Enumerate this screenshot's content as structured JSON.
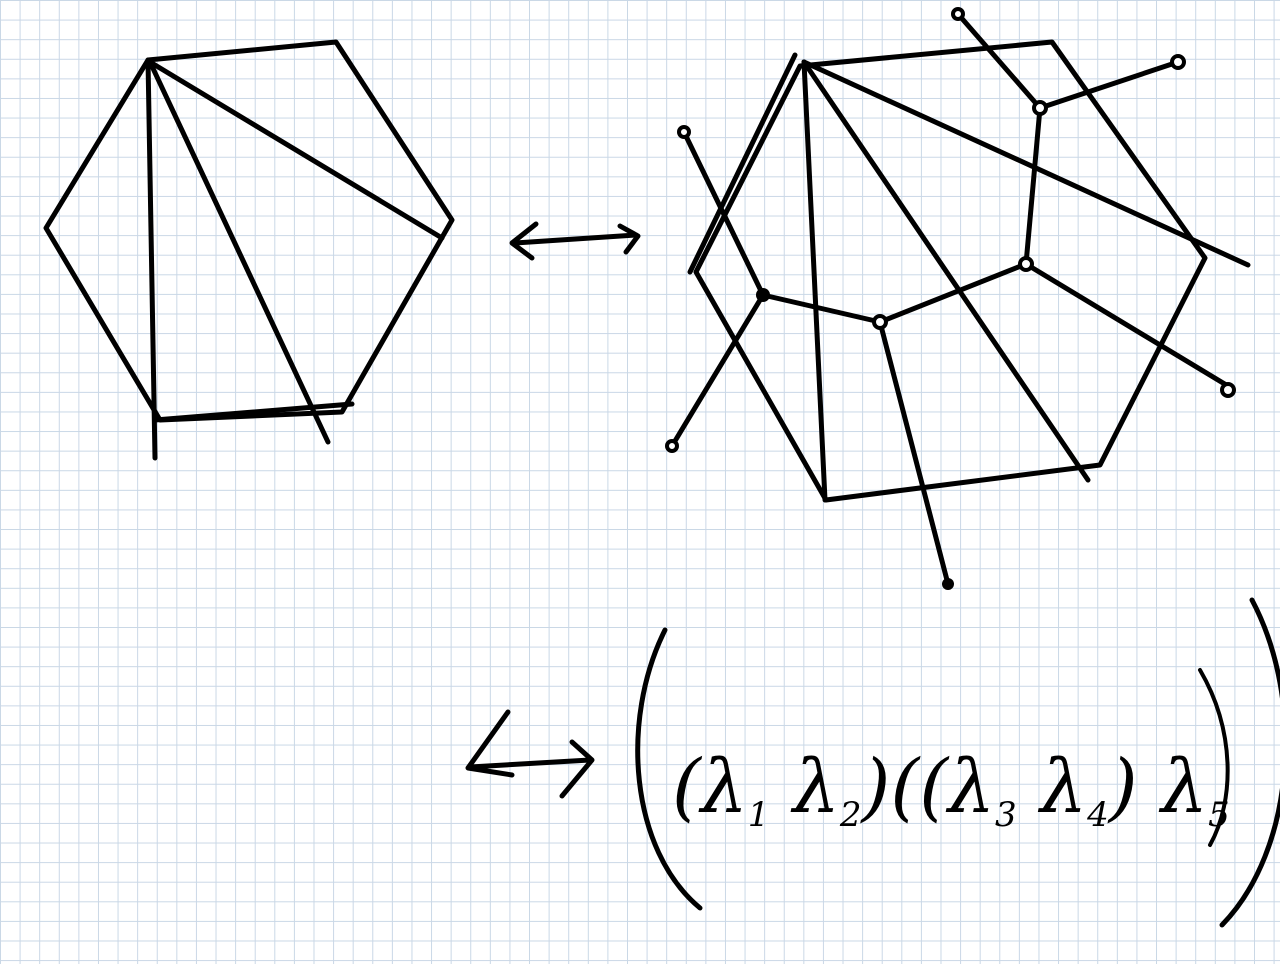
{
  "diagram": {
    "title": "",
    "ink_color": "#000000",
    "grid_color": "#c9d7e6",
    "figures": [
      {
        "id": "triangulated-hexagon",
        "kind": "hexagon-with-diagonals",
        "diagonal_count": 3
      },
      {
        "id": "hexagon-with-dual-tree",
        "kind": "hexagon-with-dual-tree",
        "leaf_count": 6,
        "internal_node_count": 4
      }
    ],
    "bijection_arrow": "⟷",
    "bracketing": {
      "parts": [
        "(",
        "(λ",
        "1",
        " λ",
        "2",
        ")",
        "(",
        "(λ",
        "3",
        " λ",
        "4",
        ")",
        " λ",
        "5",
        ")",
        ")"
      ],
      "variables": [
        "λ1",
        "λ2",
        "λ3",
        "λ4",
        "λ5"
      ]
    }
  }
}
